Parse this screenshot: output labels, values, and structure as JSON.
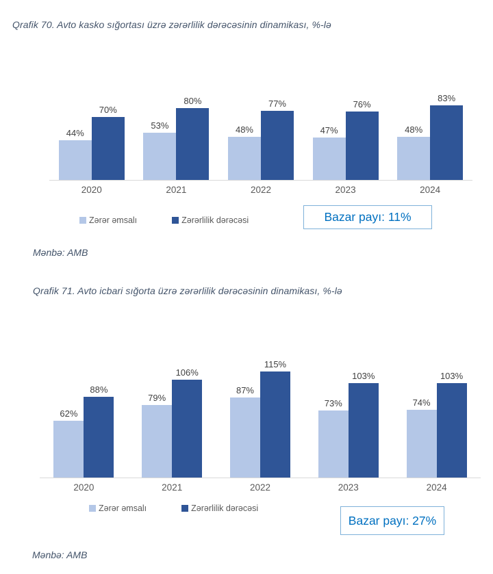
{
  "colors": {
    "series_light": "#b4c7e7",
    "series_dark": "#2f5597",
    "title_text": "#44546a",
    "value_label_text": "#404040",
    "category_label_text": "#595959",
    "legend_text": "#595959",
    "axis_line": "#d9d9d9",
    "annotation_text": "#0070c0",
    "annotation_border": "#7eb1d9"
  },
  "chart_data": [
    {
      "type": "bar",
      "title": "Qrafik 70. Avto kasko sığortası üzrə zərərlilik dərəcəsinin dinamikası, %-lə",
      "categories": [
        "2020",
        "2021",
        "2022",
        "2023",
        "2024"
      ],
      "series": [
        {
          "name": "Zərər əmsalı",
          "color": "#b4c7e7",
          "values": [
            44,
            53,
            48,
            47,
            48
          ]
        },
        {
          "name": "Zərərlilik dərəcəsi",
          "color": "#2f5597",
          "values": [
            70,
            80,
            77,
            76,
            83
          ]
        }
      ],
      "value_suffix": "%",
      "value_labels_shown": true,
      "grid": false,
      "y_axis_shown": false,
      "legend_position": "bottom",
      "annotation": "Bazar payı: 11%",
      "source": "Mənbə: AMB"
    },
    {
      "type": "bar",
      "title": "Qrafik 71. Avto icbari sığorta üzrə zərərlilik dərəcəsinin dinamikası, %-lə",
      "categories": [
        "2020",
        "2021",
        "2022",
        "2023",
        "2024"
      ],
      "series": [
        {
          "name": "Zərər əmsalı",
          "color": "#b4c7e7",
          "values": [
            62,
            79,
            87,
            73,
            74
          ]
        },
        {
          "name": "Zərərlilik dərəcəsi",
          "color": "#2f5597",
          "values": [
            88,
            106,
            115,
            103,
            103
          ]
        }
      ],
      "value_suffix": "%",
      "value_labels_shown": true,
      "grid": false,
      "y_axis_shown": false,
      "legend_position": "bottom",
      "annotation": "Bazar payı: 27%",
      "source": "Mənbə: AMB"
    }
  ]
}
